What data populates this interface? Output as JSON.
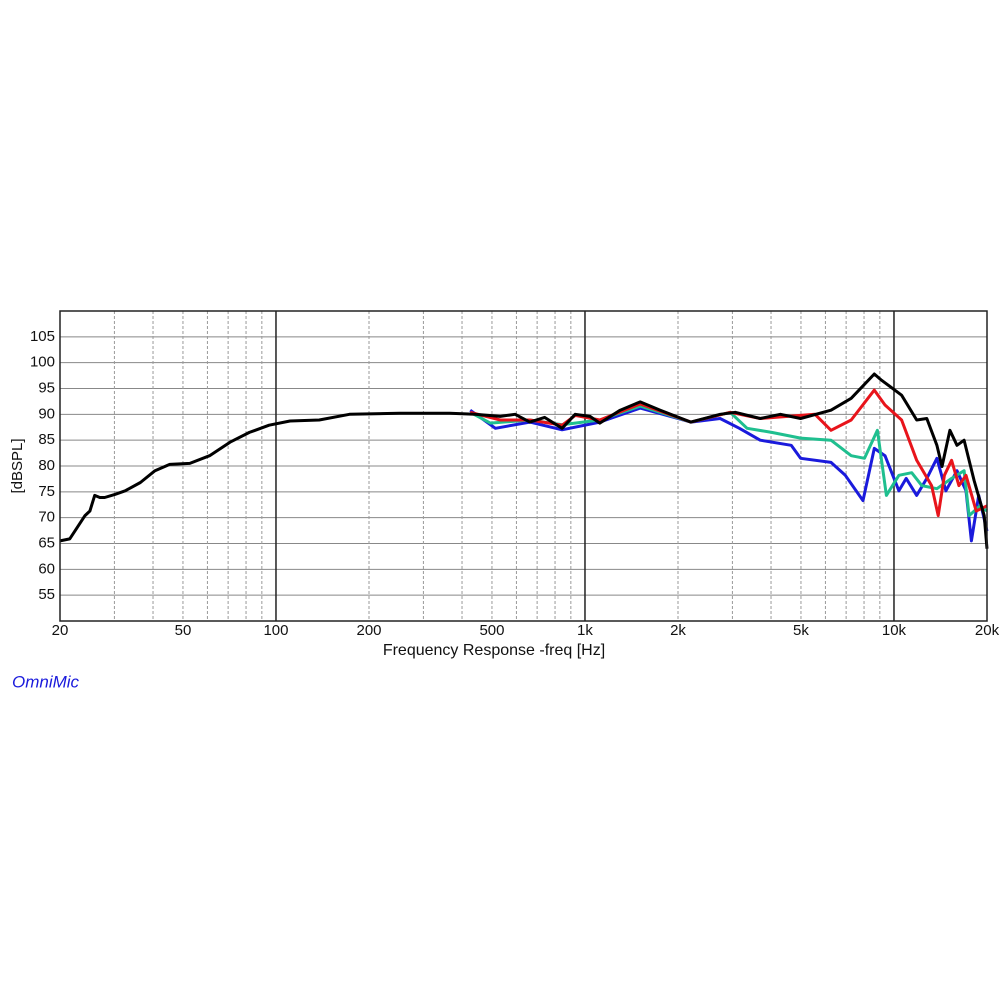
{
  "chart_data": {
    "type": "line",
    "x_label": "Frequency Response -freq [Hz]",
    "y_label": "[dBSPL]",
    "brand": "OmniMic",
    "xscale": "log",
    "xlim": [
      20,
      20000
    ],
    "ylim": [
      50,
      110
    ],
    "xticks": [
      20,
      50,
      100,
      200,
      500,
      {
        "value": 1000,
        "label": "1k"
      },
      {
        "value": 2000,
        "label": "2k"
      },
      {
        "value": 5000,
        "label": "5k"
      },
      {
        "value": 10000,
        "label": "10k"
      },
      {
        "value": 20000,
        "label": "20k"
      }
    ],
    "xminor_grid": [
      30,
      40,
      60,
      70,
      80,
      90,
      300,
      400,
      600,
      700,
      800,
      900,
      3000,
      4000,
      6000,
      7000,
      8000,
      9000
    ],
    "yticks": [
      55,
      60,
      65,
      70,
      75,
      80,
      85,
      90,
      95,
      100,
      105
    ],
    "grid": true,
    "series": [
      {
        "color": "#1a1adc",
        "x": [
          425,
          513,
          663,
          843,
          1117,
          1509,
          2202,
          2736,
          3160,
          3691,
          4650,
          4985,
          6256,
          6960,
          7940,
          8639,
          9350,
          10370,
          10950,
          11846,
          12770,
          13770,
          14720,
          15995,
          17100,
          17800,
          18800,
          20000
        ],
        "values": [
          90.8,
          87.3,
          88.5,
          87,
          88.5,
          91.2,
          88.5,
          89.2,
          87.3,
          85,
          84,
          81.5,
          80.7,
          78.2,
          73.3,
          83.4,
          82,
          75.2,
          77.6,
          74.3,
          77.6,
          81.5,
          75.2,
          79.1,
          75.2,
          65.5,
          74.3,
          67.4
        ]
      },
      {
        "color": "#1fbf8f",
        "x": [
          425,
          494,
          663,
          843,
          1117,
          1509,
          2202,
          2950,
          3346,
          4020,
          4985,
          6256,
          7269,
          8030,
          8840,
          9450,
          10370,
          11410,
          12300,
          13770,
          15360,
          16860,
          17500,
          19000,
          20000
        ],
        "values": [
          90.4,
          88.3,
          88.9,
          88,
          88.9,
          91.6,
          88.5,
          90.4,
          87.3,
          86.5,
          85.4,
          85,
          82,
          81.5,
          86.9,
          74.3,
          78.2,
          78.7,
          76.2,
          75.6,
          77.6,
          79.1,
          70.4,
          72.3,
          71.3
        ]
      },
      {
        "color": "#e8141b",
        "x": [
          425,
          532,
          663,
          843,
          930,
          1117,
          1509,
          2202,
          2950,
          3691,
          4985,
          5550,
          6256,
          7269,
          8639,
          9350,
          10584,
          11846,
          13240,
          13900,
          14560,
          15360,
          16220,
          17100,
          18450,
          20000
        ],
        "values": [
          90.4,
          88.9,
          88.9,
          87.9,
          89.8,
          88.9,
          92,
          88.5,
          90.4,
          89.2,
          89.8,
          90,
          86.9,
          88.9,
          94.7,
          91.8,
          88.9,
          81.1,
          76.2,
          70.4,
          78.2,
          81.1,
          76.2,
          78.2,
          71.3,
          72.3
        ]
      },
      {
        "color": "#000000",
        "x": [
          20,
          21.5,
          22.4,
          24.1,
          25,
          25.9,
          26.9,
          27.9,
          30.1,
          32.5,
          36.4,
          40.6,
          45.3,
          52.6,
          61,
          71,
          82,
          95,
          111,
          138,
          173,
          251,
          365,
          440,
          532,
          594,
          663,
          740,
          843,
          930,
          1038,
          1117,
          1300,
          1509,
          1753,
          2202,
          2736,
          3063,
          3691,
          4290,
          4985,
          6256,
          7269,
          8639,
          9110,
          10584,
          11846,
          12772,
          13770,
          14300,
          15172,
          15995,
          16860,
          18170,
          19580,
          20000
        ],
        "values": [
          65.5,
          65.9,
          67.5,
          70.4,
          71.3,
          74.3,
          73.9,
          73.9,
          74.5,
          75.2,
          76.8,
          79.1,
          80.3,
          80.5,
          82,
          84.6,
          86.5,
          87.9,
          88.7,
          88.9,
          90,
          90.2,
          90.2,
          90,
          89.6,
          90,
          88.5,
          89.4,
          87.3,
          90,
          89.6,
          88.3,
          90.8,
          92.4,
          90.8,
          88.5,
          90,
          90.4,
          89.2,
          90,
          89.2,
          90.8,
          93.1,
          97.8,
          96.6,
          93.7,
          88.9,
          89.2,
          84,
          79.9,
          86.9,
          84,
          85,
          77.2,
          70.4,
          64
        ]
      }
    ]
  }
}
